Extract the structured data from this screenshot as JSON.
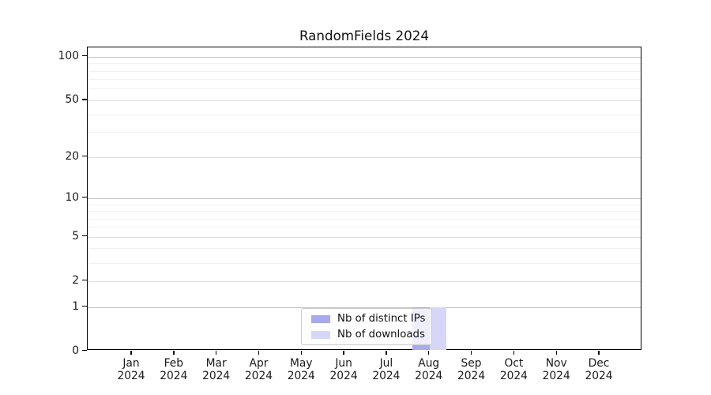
{
  "title": "RandomFields 2024",
  "chart_data": {
    "type": "bar",
    "title": "RandomFields 2024",
    "categories": [
      "Jan 2024",
      "Feb 2024",
      "Mar 2024",
      "Apr 2024",
      "May 2024",
      "Jun 2024",
      "Jul 2024",
      "Aug 2024",
      "Sep 2024",
      "Oct 2024",
      "Nov 2024",
      "Dec 2024"
    ],
    "series": [
      {
        "name": "Nb of distinct IPs",
        "color": "#a9a9ed",
        "values": [
          0,
          0,
          0,
          0,
          0,
          0,
          0,
          1,
          0,
          0,
          0,
          0
        ]
      },
      {
        "name": "Nb of downloads",
        "color": "#d6d6f6",
        "values": [
          0,
          0,
          0,
          0,
          0,
          0,
          0,
          1,
          0,
          0,
          0,
          0
        ]
      }
    ],
    "xlabel": "",
    "ylabel": "",
    "y_scale": "log1p",
    "y_ticks": [
      0,
      1,
      2,
      5,
      10,
      20,
      50,
      100
    ],
    "y_decade_ticks": [
      1,
      10,
      100
    ],
    "y_minor_ticks": [
      3,
      4,
      6,
      7,
      8,
      9,
      30,
      40,
      60,
      70,
      80,
      90
    ],
    "ylim": [
      0,
      115
    ],
    "grid": "horizontal",
    "legend_position": "lower-center",
    "spine_color": "#000000",
    "grid_color_decade": "#c2c2c2",
    "grid_color_major": "#dedede",
    "grid_color_minor": "#f1f1f1"
  },
  "legend": {
    "items": [
      {
        "label": "Nb of distinct IPs",
        "color": "#a9a9ed"
      },
      {
        "label": "Nb of downloads",
        "color": "#d6d6f6"
      }
    ]
  }
}
